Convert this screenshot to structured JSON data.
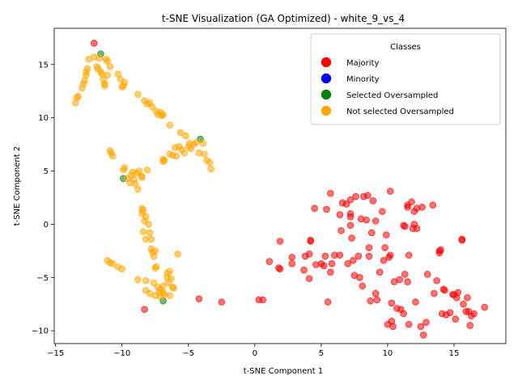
{
  "chart_data": {
    "type": "scatter",
    "title": "t-SNE Visualization (GA Optimized) - white_9_vs_4",
    "xlabel": "t-SNE Component 1",
    "ylabel": "t-SNE Component 2",
    "xlim": [
      -15.1,
      18.9
    ],
    "ylim": [
      -11.2,
      18.4
    ],
    "xticks": [
      -15,
      -10,
      -5,
      0,
      5,
      10,
      15
    ],
    "yticks": [
      -10,
      -5,
      0,
      5,
      10,
      15
    ],
    "xtick_labels": [
      "−15",
      "−10",
      "−5",
      "0",
      "5",
      "10",
      "15"
    ],
    "ytick_labels": [
      "−10",
      "−5",
      "0",
      "5",
      "10",
      "15"
    ],
    "grid": false,
    "legend": {
      "title": "Classes",
      "placement": "top-right",
      "entries": [
        {
          "name": "Majority",
          "color": "#ff0000"
        },
        {
          "name": "Minority",
          "color": "#0000ff"
        },
        {
          "name": "Selected Oversampled",
          "color": "#008000"
        },
        {
          "name": "Not selected Oversampled",
          "color": "#ffa500"
        }
      ]
    },
    "series": [
      {
        "name": "Majority",
        "color": "#ff0000",
        "points": [
          [
            -12.1,
            17.0
          ],
          [
            -8.3,
            -8.0
          ],
          [
            -4.2,
            -7.0
          ],
          [
            -2.5,
            -7.3
          ],
          [
            0.3,
            -7.1
          ],
          [
            0.6,
            -7.1
          ],
          [
            1.1,
            -3.5
          ],
          [
            1.8,
            -4.1
          ],
          [
            1.9,
            -4.2
          ],
          [
            1.9,
            -1.6
          ],
          [
            2.8,
            -3.1
          ],
          [
            2.8,
            -3.7
          ],
          [
            3.7,
            -4.3
          ],
          [
            3.8,
            -3.0
          ],
          [
            4.1,
            -5.1
          ],
          [
            4.1,
            -2.8
          ],
          [
            4.2,
            -1.6
          ],
          [
            4.2,
            -1.5
          ],
          [
            4.6,
            -3.8
          ],
          [
            4.5,
            1.5
          ],
          [
            5.0,
            -3.7
          ],
          [
            5.2,
            -3.9
          ],
          [
            5.3,
            -3.0
          ],
          [
            5.4,
            1.4
          ],
          [
            5.5,
            -7.3
          ],
          [
            5.7,
            -4.5
          ],
          [
            5.7,
            2.9
          ],
          [
            5.8,
            -3.7
          ],
          [
            6.0,
            -2.9
          ],
          [
            6.4,
            -2.9
          ],
          [
            6.4,
            0.9
          ],
          [
            6.5,
            -0.6
          ],
          [
            6.6,
            2.0
          ],
          [
            6.9,
            1.9
          ],
          [
            7.0,
            -3.7
          ],
          [
            7.2,
            2.3
          ],
          [
            7.2,
            -0.1
          ],
          [
            7.2,
            0.7
          ],
          [
            7.2,
            1.0
          ],
          [
            7.3,
            -1.3
          ],
          [
            7.4,
            -3.4
          ],
          [
            7.5,
            -4.8
          ],
          [
            7.6,
            2.6
          ],
          [
            7.8,
            -3.0
          ],
          [
            7.9,
            -5.0
          ],
          [
            8.0,
            0.5
          ],
          [
            8.1,
            -5.8
          ],
          [
            8.2,
            2.6
          ],
          [
            8.4,
            0.4
          ],
          [
            8.5,
            2.7
          ],
          [
            8.6,
            -2.2
          ],
          [
            8.6,
            -3.0
          ],
          [
            8.7,
            -7.2
          ],
          [
            8.8,
            -0.8
          ],
          [
            8.9,
            2.2
          ],
          [
            9.1,
            0.3
          ],
          [
            9.1,
            -6.5
          ],
          [
            9.2,
            -7.1
          ],
          [
            9.4,
            -4.5
          ],
          [
            9.6,
            1.2
          ],
          [
            9.7,
            -3.4
          ],
          [
            9.8,
            -2.2
          ],
          [
            9.9,
            -1.0
          ],
          [
            10.0,
            -9.4
          ],
          [
            10.1,
            -3.1
          ],
          [
            10.2,
            -2.9
          ],
          [
            10.2,
            3.1
          ],
          [
            10.3,
            -7.4
          ],
          [
            10.3,
            -9.1
          ],
          [
            10.4,
            -9.6
          ],
          [
            10.5,
            -5.4
          ],
          [
            10.7,
            -7.9
          ],
          [
            10.9,
            -5.2
          ],
          [
            11.0,
            -8.0
          ],
          [
            11.2,
            -8.4
          ],
          [
            11.2,
            -0.1
          ],
          [
            11.3,
            -4.7
          ],
          [
            11.3,
            -0.2
          ],
          [
            11.5,
            -5.4
          ],
          [
            11.5,
            1.6
          ],
          [
            11.5,
            1.8
          ],
          [
            11.6,
            -2.9
          ],
          [
            11.6,
            -9.4
          ],
          [
            11.8,
            2.1
          ],
          [
            11.9,
            -0.4
          ],
          [
            12.0,
            1.2
          ],
          [
            12.0,
            0.0
          ],
          [
            12.1,
            -7.3
          ],
          [
            12.2,
            1.5
          ],
          [
            12.2,
            -0.4
          ],
          [
            12.5,
            -9.6
          ],
          [
            12.6,
            1.6
          ],
          [
            12.7,
            -10.4
          ],
          [
            12.9,
            -9.2
          ],
          [
            13.0,
            -4.7
          ],
          [
            13.4,
            1.8
          ],
          [
            13.5,
            -6.5
          ],
          [
            13.7,
            -5.3
          ],
          [
            13.9,
            -2.7
          ],
          [
            13.9,
            -2.5
          ],
          [
            14.0,
            -2.4
          ],
          [
            14.1,
            -8.4
          ],
          [
            14.2,
            -6.1
          ],
          [
            14.3,
            -6.2
          ],
          [
            14.4,
            -8.5
          ],
          [
            14.7,
            -8.3
          ],
          [
            14.9,
            -6.6
          ],
          [
            15.0,
            -6.6
          ],
          [
            15.1,
            -8.9
          ],
          [
            15.2,
            -6.9
          ],
          [
            15.3,
            -6.4
          ],
          [
            15.6,
            -1.4
          ],
          [
            15.6,
            -1.5
          ],
          [
            15.7,
            -7.5
          ],
          [
            15.9,
            -8.2
          ],
          [
            16.0,
            -6.9
          ],
          [
            16.1,
            -8.2
          ],
          [
            16.2,
            -9.5
          ],
          [
            16.3,
            -8.6
          ],
          [
            16.5,
            -8.4
          ],
          [
            17.3,
            -7.8
          ]
        ]
      },
      {
        "name": "Minority",
        "color": "#0000ff",
        "points": []
      },
      {
        "name": "Selected Oversampled",
        "color": "#008000",
        "points": [
          [
            -11.6,
            16.0
          ],
          [
            -9.9,
            4.3
          ],
          [
            -6.9,
            -7.2
          ],
          [
            -4.1,
            8.0
          ]
        ]
      },
      {
        "name": "Not selected Oversampled",
        "color": "#ffa500",
        "points": [
          [
            -13.5,
            11.4
          ],
          [
            -13.4,
            11.9
          ],
          [
            -13.3,
            12.0
          ],
          [
            -13.0,
            12.8
          ],
          [
            -12.9,
            13.2
          ],
          [
            -12.8,
            13.5
          ],
          [
            -12.7,
            14.0
          ],
          [
            -12.7,
            14.3
          ],
          [
            -12.6,
            14.6
          ],
          [
            -12.5,
            15.5
          ],
          [
            -12.1,
            15.7
          ],
          [
            -11.9,
            14.8
          ],
          [
            -11.8,
            14.6
          ],
          [
            -11.7,
            15.6
          ],
          [
            -11.6,
            14.3
          ],
          [
            -11.5,
            14.1
          ],
          [
            -11.4,
            13.6
          ],
          [
            -11.3,
            13.2
          ],
          [
            -11.3,
            13.0
          ],
          [
            -11.2,
            15.5
          ],
          [
            -11.1,
            15.3
          ],
          [
            -11.1,
            14.0
          ],
          [
            -10.9,
            14.8
          ],
          [
            -10.9,
            6.9
          ],
          [
            -10.8,
            6.7
          ],
          [
            -10.7,
            6.4
          ],
          [
            -10.3,
            14.1
          ],
          [
            -10.1,
            13.6
          ],
          [
            -10.0,
            12.9
          ],
          [
            -9.9,
            13.0
          ],
          [
            -9.8,
            13.3
          ],
          [
            -9.9,
            5.1
          ],
          [
            -9.8,
            5.3
          ],
          [
            -9.6,
            4.3
          ],
          [
            -9.4,
            3.9
          ],
          [
            -9.3,
            4.6
          ],
          [
            -9.2,
            4.9
          ],
          [
            -9.1,
            4.2
          ],
          [
            -9.0,
            3.8
          ],
          [
            -8.9,
            4.8
          ],
          [
            -8.8,
            3.3
          ],
          [
            -8.7,
            5.0
          ],
          [
            -8.5,
            4.5
          ],
          [
            -8.5,
            4.4
          ],
          [
            -8.1,
            5.1
          ],
          [
            -8.8,
            12.2
          ],
          [
            -8.3,
            11.6
          ],
          [
            -8.1,
            11.3
          ],
          [
            -7.9,
            11.4
          ],
          [
            -7.7,
            11.0
          ],
          [
            -7.4,
            10.6
          ],
          [
            -7.3,
            10.3
          ],
          [
            -7.1,
            10.5
          ],
          [
            -7.0,
            10.2
          ],
          [
            -6.9,
            10.3
          ],
          [
            -6.4,
            9.3
          ],
          [
            -6.9,
            6.1
          ],
          [
            -6.9,
            5.9
          ],
          [
            -6.8,
            6.0
          ],
          [
            -6.4,
            6.6
          ],
          [
            -6.2,
            6.5
          ],
          [
            -6.0,
            7.2
          ],
          [
            -5.9,
            6.4
          ],
          [
            -5.7,
            7.3
          ],
          [
            -5.6,
            8.6
          ],
          [
            -5.5,
            7.0
          ],
          [
            -5.3,
            6.7
          ],
          [
            -5.2,
            8.3
          ],
          [
            -5.0,
            7.3
          ],
          [
            -4.9,
            7.6
          ],
          [
            -4.8,
            7.1
          ],
          [
            -4.6,
            7.5
          ],
          [
            -4.4,
            7.7
          ],
          [
            -4.2,
            6.7
          ],
          [
            -3.9,
            7.6
          ],
          [
            -3.8,
            6.6
          ],
          [
            -3.6,
            6.0
          ],
          [
            -3.4,
            5.8
          ],
          [
            -3.3,
            5.2
          ],
          [
            -8.5,
            1.5
          ],
          [
            -8.5,
            1.0
          ],
          [
            -8.4,
            1.3
          ],
          [
            -8.3,
            0.3
          ],
          [
            -8.2,
            0.7
          ],
          [
            -8.4,
            -0.7
          ],
          [
            -8.2,
            -1.4
          ],
          [
            -8.0,
            0.0
          ],
          [
            -7.9,
            -0.8
          ],
          [
            -7.8,
            -1.4
          ],
          [
            -7.8,
            -2.3
          ],
          [
            -7.7,
            -2.6
          ],
          [
            -7.6,
            -3.0
          ],
          [
            -7.5,
            -4.1
          ],
          [
            -7.4,
            -4.0
          ],
          [
            -7.5,
            -2.5
          ],
          [
            -5.8,
            -2.8
          ],
          [
            -11.1,
            -3.4
          ],
          [
            -10.9,
            -3.6
          ],
          [
            -10.7,
            -3.7
          ],
          [
            -10.3,
            -4.0
          ],
          [
            -10.0,
            -4.2
          ],
          [
            -8.8,
            -5.2
          ],
          [
            -8.2,
            -5.3
          ],
          [
            -7.6,
            -5.5
          ],
          [
            -7.3,
            -5.9
          ],
          [
            -7.1,
            -6.1
          ],
          [
            -6.9,
            -6.4
          ],
          [
            -6.6,
            -4.6
          ],
          [
            -6.4,
            -4.4
          ],
          [
            -6.5,
            -5.5
          ],
          [
            -6.3,
            -5.1
          ],
          [
            -6.2,
            -5.9
          ],
          [
            -6.1,
            -6.0
          ],
          [
            -6.4,
            -6.7
          ],
          [
            -6.8,
            -6.6
          ],
          [
            -7.1,
            -6.8
          ],
          [
            -7.5,
            -6.7
          ],
          [
            -7.9,
            -6.5
          ],
          [
            -8.2,
            -6.2
          ],
          [
            -6.6,
            -5.0
          ],
          [
            -6.9,
            -5.8
          ],
          [
            -7.2,
            -6.4
          ]
        ]
      }
    ]
  }
}
